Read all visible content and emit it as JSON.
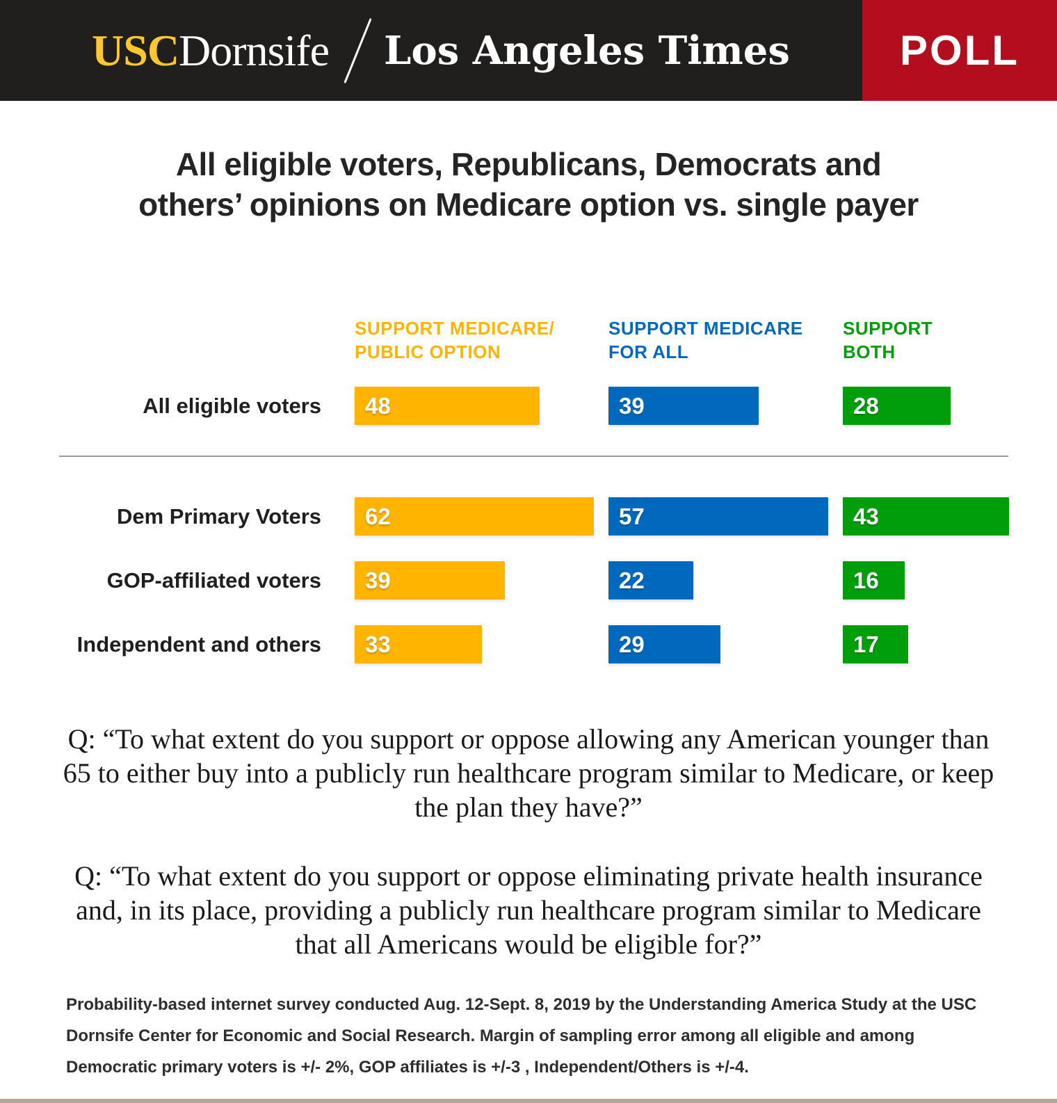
{
  "header": {
    "usc_logo_text": "USC",
    "dornsife_logo_text": "Dornsife",
    "latimes_logo_text": "Los Angeles Times",
    "poll_badge_label": "POLL",
    "colors": {
      "masthead_background": "#211e1e",
      "poll_badge_red": "#b30d1e",
      "usc_gold": "#ffc72c"
    }
  },
  "title": "All eligible voters, Republicans, Democrats and\nothers’ opinions on Medicare option vs. single payer",
  "chart_data": {
    "type": "bar",
    "orientation": "horizontal",
    "unit": "percent",
    "xlim": [
      0,
      100
    ],
    "legend_position": "top",
    "grid": false,
    "columns": [
      {
        "key": "public_option",
        "label": "SUPPORT MEDICARE/\nPUBLIC OPTION",
        "color": "#ffb400"
      },
      {
        "key": "medicare_for_all",
        "label": "SUPPORT MEDICARE\nFOR ALL",
        "color": "#0069bd"
      },
      {
        "key": "both",
        "label": "SUPPORT\nBOTH",
        "color": "#009e0a"
      }
    ],
    "rows": [
      {
        "label": "All eligible voters",
        "public_option": 48,
        "medicare_for_all": 39,
        "both": 28
      },
      {
        "label": "Dem Primary Voters",
        "public_option": 62,
        "medicare_for_all": 57,
        "both": 43
      },
      {
        "label": "GOP-affiliated voters",
        "public_option": 39,
        "medicare_for_all": 22,
        "both": 16
      },
      {
        "label": "Independent and others",
        "public_option": 33,
        "medicare_for_all": 29,
        "both": 17
      }
    ]
  },
  "questions": [
    {
      "text": "Q: “To what extent do you support or oppose allowing any American younger than\n65 to either buy into a publicly run healthcare program similar to Medicare, or keep\nthe plan they have?”"
    },
    {
      "text": "Q: “To what extent do you support or oppose eliminating private health insurance\nand, in its place, providing a publicly run healthcare program similar to Medicare\nthat all Americans would be eligible for?”"
    }
  ],
  "footnote": "Probability-based internet survey conducted Aug. 12-Sept. 8, 2019 by the Understanding America Study at the USC Dornsife Center for Economic and Social Research. Margin of sampling error among all eligible and among Democratic primary voters is +/- 2%, GOP affiliates is +/-3 , Independent/Others is +/-4."
}
